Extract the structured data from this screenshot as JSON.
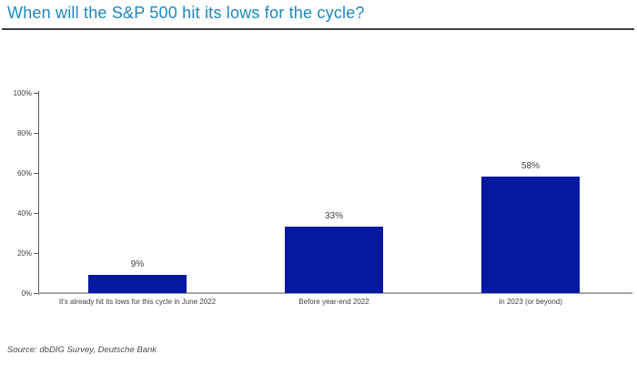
{
  "page": {
    "title": "When will the S&P 500 hit its lows for the cycle?",
    "source": "Source: dbDIG Survey, Deutsche Bank"
  },
  "colors": {
    "title_blue": "#1E87BD",
    "title_rule": "#404040",
    "bar_blue": "#0418A0",
    "axis_gray": "#595959",
    "baseline_gray": "#A6A6A6",
    "label_gray": "#404040",
    "source_gray": "#4A4A4A"
  },
  "chart_data": {
    "type": "bar",
    "title": "When will the S&P 500 hit its lows for the cycle?",
    "categories": [
      "It's already hit its lows for this cycle in June 2022",
      "Before year-end 2022",
      "In 2023 (or beyond)"
    ],
    "values": [
      9,
      33,
      58
    ],
    "value_labels": [
      "9%",
      "33%",
      "58%"
    ],
    "xlabel": "",
    "ylabel": "",
    "ylim": [
      0,
      100
    ],
    "ytick_values": [
      0,
      20,
      40,
      60,
      80,
      100
    ],
    "ytick_labels": [
      "0%",
      "20%",
      "40%",
      "60%",
      "80%",
      "100%"
    ],
    "grid": false,
    "legend": "none",
    "bar_color": "#0418A0",
    "source": "Source: dbDIG Survey, Deutsche Bank"
  }
}
